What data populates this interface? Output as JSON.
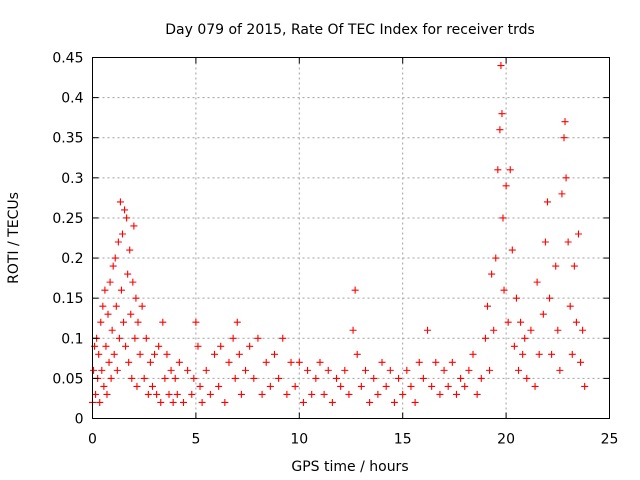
{
  "chart_data": {
    "type": "scatter",
    "title": "Day 079 of 2015, Rate Of TEC Index for receiver trds",
    "xlabel": "GPS time / hours",
    "ylabel": "ROTI / TECUs",
    "xlim": [
      0,
      25
    ],
    "ylim": [
      0,
      0.45
    ],
    "xticks": [
      "0",
      "5",
      "10",
      "15",
      "20",
      "25"
    ],
    "yticks": [
      "0",
      "0.05",
      "0.1",
      "0.15",
      "0.2",
      "0.25",
      "0.3",
      "0.35",
      "0.4",
      "0.45"
    ],
    "grid": true,
    "marker": "+",
    "series": [
      {
        "name": "ROTI",
        "color": "#ff0000",
        "points": [
          [
            0.0,
            0.02
          ],
          [
            0.05,
            0.06
          ],
          [
            0.1,
            0.09
          ],
          [
            0.15,
            0.03
          ],
          [
            0.2,
            0.1
          ],
          [
            0.25,
            0.05
          ],
          [
            0.3,
            0.08
          ],
          [
            0.35,
            0.02
          ],
          [
            0.4,
            0.12
          ],
          [
            0.45,
            0.06
          ],
          [
            0.5,
            0.14
          ],
          [
            0.55,
            0.04
          ],
          [
            0.6,
            0.16
          ],
          [
            0.65,
            0.09
          ],
          [
            0.7,
            0.03
          ],
          [
            0.75,
            0.13
          ],
          [
            0.8,
            0.07
          ],
          [
            0.85,
            0.17
          ],
          [
            0.9,
            0.05
          ],
          [
            0.95,
            0.11
          ],
          [
            1.0,
            0.19
          ],
          [
            1.05,
            0.08
          ],
          [
            1.1,
            0.2
          ],
          [
            1.15,
            0.14
          ],
          [
            1.2,
            0.06
          ],
          [
            1.25,
            0.22
          ],
          [
            1.3,
            0.1
          ],
          [
            1.35,
            0.27
          ],
          [
            1.4,
            0.16
          ],
          [
            1.45,
            0.23
          ],
          [
            1.5,
            0.12
          ],
          [
            1.55,
            0.26
          ],
          [
            1.6,
            0.09
          ],
          [
            1.65,
            0.25
          ],
          [
            1.7,
            0.18
          ],
          [
            1.75,
            0.07
          ],
          [
            1.8,
            0.21
          ],
          [
            1.85,
            0.13
          ],
          [
            1.9,
            0.05
          ],
          [
            1.95,
            0.17
          ],
          [
            2.0,
            0.24
          ],
          [
            2.05,
            0.1
          ],
          [
            2.1,
            0.15
          ],
          [
            2.15,
            0.04
          ],
          [
            2.2,
            0.12
          ],
          [
            2.3,
            0.08
          ],
          [
            2.4,
            0.14
          ],
          [
            2.5,
            0.05
          ],
          [
            2.6,
            0.1
          ],
          [
            2.7,
            0.03
          ],
          [
            2.8,
            0.07
          ],
          [
            2.9,
            0.04
          ],
          [
            3.0,
            0.08
          ],
          [
            3.1,
            0.03
          ],
          [
            3.2,
            0.09
          ],
          [
            3.3,
            0.02
          ],
          [
            3.4,
            0.12
          ],
          [
            3.5,
            0.05
          ],
          [
            3.6,
            0.08
          ],
          [
            3.7,
            0.03
          ],
          [
            3.8,
            0.06
          ],
          [
            3.9,
            0.02
          ],
          [
            4.0,
            0.05
          ],
          [
            4.1,
            0.03
          ],
          [
            4.2,
            0.07
          ],
          [
            4.4,
            0.02
          ],
          [
            4.6,
            0.06
          ],
          [
            4.8,
            0.03
          ],
          [
            4.9,
            0.05
          ],
          [
            5.0,
            0.12
          ],
          [
            5.1,
            0.09
          ],
          [
            5.2,
            0.04
          ],
          [
            5.3,
            0.02
          ],
          [
            5.5,
            0.06
          ],
          [
            5.7,
            0.03
          ],
          [
            5.9,
            0.08
          ],
          [
            6.1,
            0.04
          ],
          [
            6.2,
            0.09
          ],
          [
            6.4,
            0.02
          ],
          [
            6.6,
            0.07
          ],
          [
            6.8,
            0.1
          ],
          [
            6.9,
            0.05
          ],
          [
            7.0,
            0.12
          ],
          [
            7.1,
            0.08
          ],
          [
            7.2,
            0.03
          ],
          [
            7.4,
            0.06
          ],
          [
            7.6,
            0.09
          ],
          [
            7.8,
            0.05
          ],
          [
            8.0,
            0.1
          ],
          [
            8.2,
            0.03
          ],
          [
            8.4,
            0.07
          ],
          [
            8.6,
            0.04
          ],
          [
            8.8,
            0.08
          ],
          [
            9.0,
            0.05
          ],
          [
            9.2,
            0.1
          ],
          [
            9.4,
            0.03
          ],
          [
            9.6,
            0.07
          ],
          [
            9.8,
            0.04
          ],
          [
            10.0,
            0.07
          ],
          [
            10.2,
            0.02
          ],
          [
            10.4,
            0.06
          ],
          [
            10.6,
            0.03
          ],
          [
            10.8,
            0.05
          ],
          [
            11.0,
            0.07
          ],
          [
            11.2,
            0.03
          ],
          [
            11.4,
            0.06
          ],
          [
            11.6,
            0.02
          ],
          [
            11.8,
            0.05
          ],
          [
            12.0,
            0.04
          ],
          [
            12.2,
            0.06
          ],
          [
            12.4,
            0.03
          ],
          [
            12.6,
            0.11
          ],
          [
            12.7,
            0.16
          ],
          [
            12.8,
            0.08
          ],
          [
            13.0,
            0.04
          ],
          [
            13.2,
            0.06
          ],
          [
            13.4,
            0.02
          ],
          [
            13.6,
            0.05
          ],
          [
            13.8,
            0.03
          ],
          [
            14.0,
            0.07
          ],
          [
            14.2,
            0.04
          ],
          [
            14.4,
            0.06
          ],
          [
            14.6,
            0.02
          ],
          [
            14.8,
            0.05
          ],
          [
            15.0,
            0.03
          ],
          [
            15.2,
            0.06
          ],
          [
            15.4,
            0.04
          ],
          [
            15.6,
            0.02
          ],
          [
            15.8,
            0.07
          ],
          [
            16.0,
            0.05
          ],
          [
            16.2,
            0.11
          ],
          [
            16.4,
            0.04
          ],
          [
            16.6,
            0.07
          ],
          [
            16.8,
            0.03
          ],
          [
            17.0,
            0.06
          ],
          [
            17.2,
            0.04
          ],
          [
            17.4,
            0.07
          ],
          [
            17.6,
            0.03
          ],
          [
            17.8,
            0.05
          ],
          [
            18.0,
            0.04
          ],
          [
            18.2,
            0.06
          ],
          [
            18.4,
            0.08
          ],
          [
            18.6,
            0.03
          ],
          [
            18.8,
            0.05
          ],
          [
            19.0,
            0.1
          ],
          [
            19.1,
            0.14
          ],
          [
            19.2,
            0.06
          ],
          [
            19.3,
            0.18
          ],
          [
            19.4,
            0.11
          ],
          [
            19.5,
            0.2
          ],
          [
            19.6,
            0.31
          ],
          [
            19.7,
            0.36
          ],
          [
            19.75,
            0.44
          ],
          [
            19.8,
            0.38
          ],
          [
            19.85,
            0.25
          ],
          [
            19.9,
            0.16
          ],
          [
            20.0,
            0.29
          ],
          [
            20.1,
            0.12
          ],
          [
            20.2,
            0.31
          ],
          [
            20.3,
            0.21
          ],
          [
            20.4,
            0.09
          ],
          [
            20.5,
            0.15
          ],
          [
            20.6,
            0.06
          ],
          [
            20.7,
            0.12
          ],
          [
            20.8,
            0.08
          ],
          [
            20.9,
            0.1
          ],
          [
            21.0,
            0.05
          ],
          [
            21.2,
            0.11
          ],
          [
            21.4,
            0.04
          ],
          [
            21.5,
            0.17
          ],
          [
            21.6,
            0.08
          ],
          [
            21.8,
            0.13
          ],
          [
            21.9,
            0.22
          ],
          [
            22.0,
            0.27
          ],
          [
            22.1,
            0.15
          ],
          [
            22.2,
            0.08
          ],
          [
            22.4,
            0.19
          ],
          [
            22.5,
            0.11
          ],
          [
            22.6,
            0.06
          ],
          [
            22.7,
            0.28
          ],
          [
            22.8,
            0.35
          ],
          [
            22.85,
            0.37
          ],
          [
            22.9,
            0.3
          ],
          [
            23.0,
            0.22
          ],
          [
            23.1,
            0.14
          ],
          [
            23.2,
            0.08
          ],
          [
            23.3,
            0.19
          ],
          [
            23.4,
            0.12
          ],
          [
            23.5,
            0.23
          ],
          [
            23.6,
            0.07
          ],
          [
            23.7,
            0.11
          ],
          [
            23.8,
            0.04
          ]
        ]
      }
    ]
  }
}
